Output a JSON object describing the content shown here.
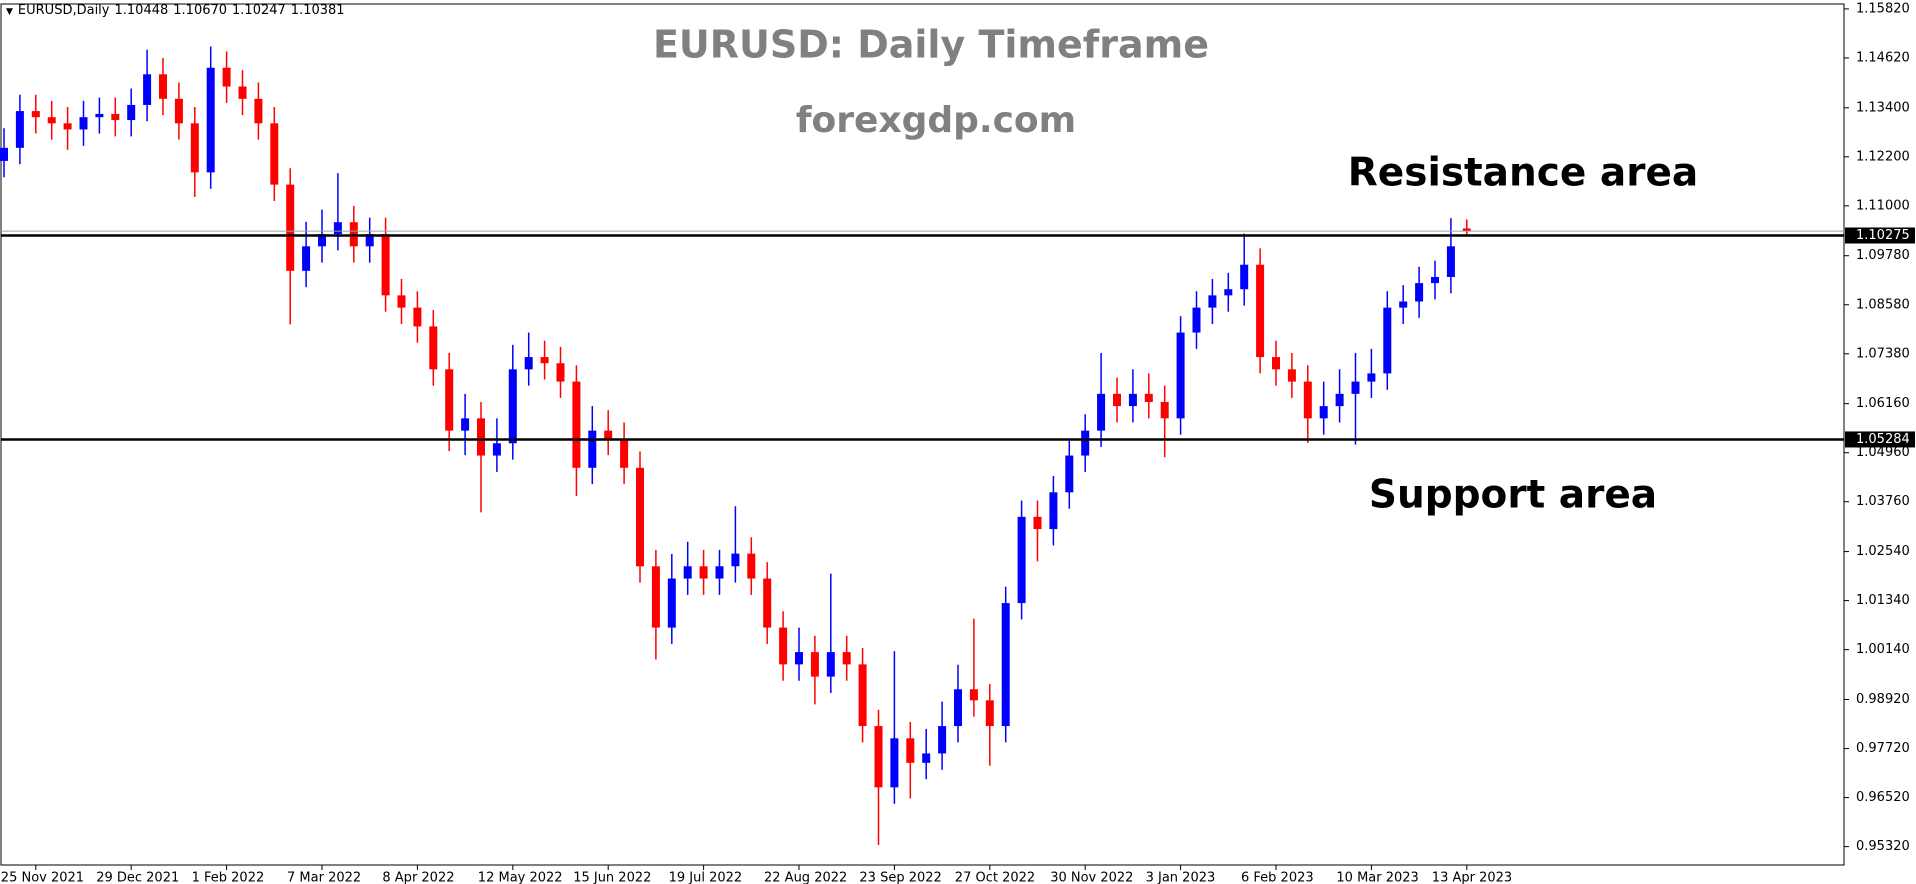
{
  "chart_data": {
    "type": "candlestick",
    "header": {
      "symbol": "EURUSD,Daily",
      "ohlc": [
        1.10448,
        {
          "value": 1.1067,
          "label": "1.10670"
        },
        1.10247,
        1.10381
      ]
    },
    "title": "EURUSD: Daily Timeframe",
    "subtitle": "forexgdp.com",
    "annotations": [
      "Resistance area",
      "Support area"
    ],
    "up_color": "#0000ff",
    "down_color": "#ff0000",
    "categories": [
      null,
      null,
      "25 Nov 2021",
      null,
      null,
      null,
      null,
      null,
      "29 Dec 2021",
      null,
      null,
      null,
      null,
      null,
      "1 Feb 2022",
      null,
      null,
      null,
      null,
      null,
      "7 Mar 2022",
      null,
      null,
      null,
      null,
      null,
      "8 Apr 2022",
      null,
      null,
      null,
      null,
      null,
      "12 May 2022",
      null,
      null,
      null,
      null,
      null,
      "15 Jun 2022",
      null,
      null,
      null,
      null,
      null,
      "19 Jul 2022",
      null,
      null,
      null,
      null,
      null,
      "22 Aug 2022",
      null,
      null,
      null,
      null,
      null,
      "23 Sep 2022",
      null,
      null,
      null,
      null,
      null,
      "27 Oct 2022",
      null,
      null,
      null,
      null,
      null,
      "30 Nov 2022",
      null,
      null,
      null,
      null,
      null,
      "3 Jan 2023",
      null,
      null,
      null,
      null,
      null,
      "6 Feb 2023",
      null,
      null,
      null,
      null,
      null,
      "10 Mar 2023",
      null,
      null,
      null,
      null,
      null,
      "13 Apr 2023"
    ],
    "open": [
      1.121,
      1.1242,
      1.1332,
      1.1317,
      1.1302,
      1.1287,
      1.1317,
      1.1325,
      1.131,
      1.1347,
      1.1422,
      1.1362,
      1.1302,
      1.1182,
      1.1438,
      1.1392,
      1.1362,
      1.1302,
      1.1152,
      1.0941,
      1.1001,
      1.1031,
      1.106,
      1.1001,
      1.1031,
      1.0881,
      1.0851,
      1.0805,
      1.07,
      1.055,
      1.058,
      1.0489,
      1.0519,
      1.07,
      1.073,
      1.0715,
      1.067,
      1.0459,
      1.055,
      1.053,
      1.0459,
      1.0218,
      1.0068,
      1.0188,
      1.0218,
      1.0188,
      1.0218,
      1.0249,
      1.0188,
      1.0068,
      0.9978,
      1.0008,
      0.9948,
      1.0008,
      0.9978,
      0.9827,
      0.9677,
      0.9797,
      0.9737,
      0.976,
      0.9827,
      0.9917,
      0.989,
      0.9827,
      1.0128,
      1.0339,
      1.0309,
      1.0399,
      1.0489,
      1.055,
      1.064,
      1.061,
      1.064,
      1.062,
      1.058,
      1.079,
      1.0851,
      1.0881,
      1.0896,
      1.0956,
      1.073,
      1.07,
      1.067,
      1.058,
      1.061,
      1.064,
      1.067,
      1.069,
      1.0851,
      1.0866,
      1.0911,
      1.0926,
      1.10448
    ],
    "high": [
      1.129,
      1.1372,
      1.1372,
      1.1357,
      1.1342,
      1.1357,
      1.1365,
      1.1365,
      1.1387,
      1.1482,
      1.1462,
      1.1402,
      1.1342,
      1.149,
      1.1478,
      1.1432,
      1.1402,
      1.1342,
      1.1192,
      1.1061,
      1.1091,
      1.118,
      1.11,
      1.1071,
      1.1071,
      1.0921,
      1.0891,
      1.0845,
      1.074,
      1.064,
      1.062,
      1.058,
      1.076,
      1.079,
      1.077,
      1.0755,
      1.071,
      1.061,
      1.06,
      1.057,
      1.0499,
      1.0258,
      1.0248,
      1.0278,
      1.0258,
      1.0258,
      1.0365,
      1.0289,
      1.0228,
      1.0108,
      1.0068,
      1.0048,
      1.02,
      1.0048,
      1.0018,
      0.9867,
      1.001,
      0.9837,
      0.982,
      0.9887,
      0.9977,
      1.009,
      0.993,
      1.0168,
      1.0379,
      1.0379,
      1.0439,
      1.0529,
      1.059,
      1.074,
      1.068,
      1.07,
      1.069,
      1.066,
      1.083,
      1.0891,
      1.0921,
      1.0936,
      1.1032,
      1.0996,
      1.077,
      1.074,
      1.071,
      1.067,
      1.07,
      1.074,
      1.075,
      1.0891,
      1.0906,
      1.0951,
      1.0966,
      1.107,
      1.1067
    ],
    "low": [
      1.117,
      1.1202,
      1.1277,
      1.1262,
      1.1237,
      1.1247,
      1.1277,
      1.127,
      1.127,
      1.1307,
      1.1322,
      1.1262,
      1.1122,
      1.1142,
      1.1352,
      1.1322,
      1.1262,
      1.1112,
      1.081,
      1.0901,
      1.0961,
      1.0991,
      1.0961,
      1.0961,
      1.0841,
      1.0811,
      1.0765,
      1.066,
      1.05,
      1.049,
      1.035,
      1.0449,
      1.0479,
      1.066,
      1.0675,
      1.063,
      1.039,
      1.0419,
      1.049,
      1.0419,
      1.0178,
      0.999,
      1.0028,
      1.0148,
      1.0148,
      1.0148,
      1.0178,
      1.0148,
      1.0028,
      0.9938,
      0.9938,
      0.988,
      0.9908,
      0.9938,
      0.9787,
      0.9536,
      0.9637,
      0.965,
      0.9697,
      0.972,
      0.9787,
      0.985,
      0.973,
      0.9787,
      1.0088,
      1.023,
      1.0269,
      1.0359,
      1.0449,
      1.051,
      1.057,
      1.057,
      1.058,
      1.0485,
      1.054,
      1.075,
      1.0811,
      1.0841,
      1.0856,
      1.069,
      1.066,
      1.063,
      1.052,
      1.054,
      1.057,
      1.0516,
      1.063,
      1.065,
      1.0811,
      1.0826,
      1.0871,
      1.0886,
      1.10247
    ],
    "close": [
      1.1242,
      1.1332,
      1.1317,
      1.1302,
      1.1287,
      1.1317,
      1.1325,
      1.131,
      1.1347,
      1.1422,
      1.1362,
      1.1302,
      1.1182,
      1.1438,
      1.1392,
      1.1362,
      1.1302,
      1.1152,
      1.0941,
      1.1001,
      1.1031,
      1.106,
      1.1001,
      1.1031,
      1.0881,
      1.0851,
      1.0805,
      1.07,
      1.055,
      1.058,
      1.0489,
      1.0519,
      1.07,
      1.073,
      1.0715,
      1.067,
      1.0459,
      1.055,
      1.053,
      1.0459,
      1.0218,
      1.0068,
      1.0188,
      1.0218,
      1.0188,
      1.0218,
      1.0249,
      1.0188,
      1.0068,
      0.9978,
      1.0008,
      0.9948,
      1.0008,
      0.9978,
      0.9827,
      0.9677,
      0.9797,
      0.9737,
      0.976,
      0.9827,
      0.9917,
      0.989,
      0.9827,
      1.0128,
      1.0339,
      1.0309,
      1.0399,
      1.0489,
      1.055,
      1.064,
      1.061,
      1.064,
      1.062,
      1.058,
      1.079,
      1.0851,
      1.0881,
      1.0896,
      1.0956,
      1.073,
      1.07,
      1.067,
      1.058,
      1.061,
      1.064,
      1.067,
      1.069,
      1.0851,
      1.0866,
      1.0911,
      1.0926,
      1.1001,
      1.10381
    ],
    "levels": [
      {
        "value": 1.10275,
        "label": "1.10275"
      },
      {
        "value": 1.05284,
        "label": "1.05284"
      }
    ],
    "ylim": [
      0.9487,
      1.1594
    ],
    "yticks": [
      {
        "value": 1.1582,
        "label": "1.15820"
      },
      {
        "value": 1.1462,
        "label": "1.14620"
      },
      {
        "value": 1.134,
        "label": "1.13400"
      },
      {
        "value": 1.122,
        "label": "1.12200"
      },
      {
        "value": 1.11,
        "label": "1.11000"
      },
      {
        "value": 1.0978,
        "label": "1.09780"
      },
      {
        "value": 1.0858,
        "label": "1.08580"
      },
      {
        "value": 1.0738,
        "label": "1.07380"
      },
      {
        "value": 1.0616,
        "label": "1.06160"
      },
      {
        "value": 1.0496,
        "label": "1.04960"
      },
      {
        "value": 1.0376,
        "label": "1.03760"
      },
      {
        "value": 1.0254,
        "label": "1.02540"
      },
      {
        "value": 1.0134,
        "label": "1.01340"
      },
      {
        "value": 1.0014,
        "label": "1.00140"
      },
      {
        "value": 0.9892,
        "label": "0.98920"
      },
      {
        "value": 0.9772,
        "label": "0.97720"
      },
      {
        "value": 0.9652,
        "label": "0.96520"
      },
      {
        "value": 0.9532,
        "label": "0.95320"
      }
    ],
    "grid": false
  }
}
